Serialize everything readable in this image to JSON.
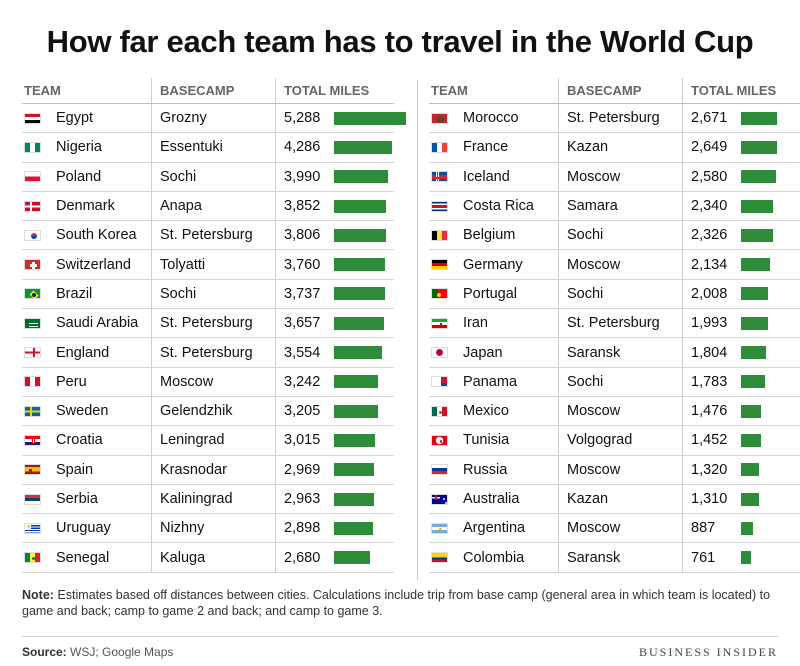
{
  "title": "How far each team has to travel in the World Cup",
  "headers": {
    "team": "TEAM",
    "basecamp": "BASECAMP",
    "miles": "TOTAL MILES"
  },
  "note_label": "Note:",
  "note_text": "Estimates based off distances between cities. Calculations include trip from base camp (general area in which team is located) to game and back; camp to game 2 and back; and camp to game 3.",
  "source_label": "Source:",
  "source_text": "WSJ; Google Maps",
  "brand": "BUSINESS INSIDER",
  "colors": {
    "bar": "#2e8b3a"
  },
  "chart_data": {
    "type": "table",
    "title": "How far each team has to travel in the World Cup",
    "columns": [
      "TEAM",
      "BASECAMP",
      "TOTAL MILES"
    ],
    "bar_max": 5288,
    "rows": [
      {
        "team": "Egypt",
        "basecamp": "Grozny",
        "miles": 5288,
        "miles_label": "5,288",
        "flag": "egypt"
      },
      {
        "team": "Nigeria",
        "basecamp": "Essentuki",
        "miles": 4286,
        "miles_label": "4,286",
        "flag": "nigeria"
      },
      {
        "team": "Poland",
        "basecamp": "Sochi",
        "miles": 3990,
        "miles_label": "3,990",
        "flag": "poland"
      },
      {
        "team": "Denmark",
        "basecamp": "Anapa",
        "miles": 3852,
        "miles_label": "3,852",
        "flag": "denmark"
      },
      {
        "team": "South Korea",
        "basecamp": "St. Petersburg",
        "miles": 3806,
        "miles_label": "3,806",
        "flag": "southkorea"
      },
      {
        "team": "Switzerland",
        "basecamp": "Tolyatti",
        "miles": 3760,
        "miles_label": "3,760",
        "flag": "switzerland"
      },
      {
        "team": "Brazil",
        "basecamp": "Sochi",
        "miles": 3737,
        "miles_label": "3,737",
        "flag": "brazil"
      },
      {
        "team": "Saudi Arabia",
        "basecamp": "St. Petersburg",
        "miles": 3657,
        "miles_label": "3,657",
        "flag": "saudiarabia"
      },
      {
        "team": "England",
        "basecamp": "St. Petersburg",
        "miles": 3554,
        "miles_label": "3,554",
        "flag": "england"
      },
      {
        "team": "Peru",
        "basecamp": "Moscow",
        "miles": 3242,
        "miles_label": "3,242",
        "flag": "peru"
      },
      {
        "team": "Sweden",
        "basecamp": "Gelendzhik",
        "miles": 3205,
        "miles_label": "3,205",
        "flag": "sweden"
      },
      {
        "team": "Croatia",
        "basecamp": "Leningrad",
        "miles": 3015,
        "miles_label": "3,015",
        "flag": "croatia"
      },
      {
        "team": "Spain",
        "basecamp": "Krasnodar",
        "miles": 2969,
        "miles_label": "2,969",
        "flag": "spain"
      },
      {
        "team": "Serbia",
        "basecamp": "Kaliningrad",
        "miles": 2963,
        "miles_label": "2,963",
        "flag": "serbia"
      },
      {
        "team": "Uruguay",
        "basecamp": "Nizhny",
        "miles": 2898,
        "miles_label": "2,898",
        "flag": "uruguay"
      },
      {
        "team": "Senegal",
        "basecamp": "Kaluga",
        "miles": 2680,
        "miles_label": "2,680",
        "flag": "senegal"
      },
      {
        "team": "Morocco",
        "basecamp": "St. Petersburg",
        "miles": 2671,
        "miles_label": "2,671",
        "flag": "morocco"
      },
      {
        "team": "France",
        "basecamp": "Kazan",
        "miles": 2649,
        "miles_label": "2,649",
        "flag": "france"
      },
      {
        "team": "Iceland",
        "basecamp": "Moscow",
        "miles": 2580,
        "miles_label": "2,580",
        "flag": "iceland"
      },
      {
        "team": "Costa Rica",
        "basecamp": "Samara",
        "miles": 2340,
        "miles_label": "2,340",
        "flag": "costarica"
      },
      {
        "team": "Belgium",
        "basecamp": "Sochi",
        "miles": 2326,
        "miles_label": "2,326",
        "flag": "belgium"
      },
      {
        "team": "Germany",
        "basecamp": "Moscow",
        "miles": 2134,
        "miles_label": "2,134",
        "flag": "germany"
      },
      {
        "team": "Portugal",
        "basecamp": "Sochi",
        "miles": 2008,
        "miles_label": "2,008",
        "flag": "portugal"
      },
      {
        "team": "Iran",
        "basecamp": "St. Petersburg",
        "miles": 1993,
        "miles_label": "1,993",
        "flag": "iran"
      },
      {
        "team": "Japan",
        "basecamp": "Saransk",
        "miles": 1804,
        "miles_label": "1,804",
        "flag": "japan"
      },
      {
        "team": "Panama",
        "basecamp": "Sochi",
        "miles": 1783,
        "miles_label": "1,783",
        "flag": "panama"
      },
      {
        "team": "Mexico",
        "basecamp": "Moscow",
        "miles": 1476,
        "miles_label": "1,476",
        "flag": "mexico"
      },
      {
        "team": "Tunisia",
        "basecamp": "Volgograd",
        "miles": 1452,
        "miles_label": "1,452",
        "flag": "tunisia"
      },
      {
        "team": "Russia",
        "basecamp": "Moscow",
        "miles": 1320,
        "miles_label": "1,320",
        "flag": "russia"
      },
      {
        "team": "Australia",
        "basecamp": "Kazan",
        "miles": 1310,
        "miles_label": "1,310",
        "flag": "australia"
      },
      {
        "team": "Argentina",
        "basecamp": "Moscow",
        "miles": 887,
        "miles_label": "887",
        "flag": "argentina"
      },
      {
        "team": "Colombia",
        "basecamp": "Saransk",
        "miles": 761,
        "miles_label": "761",
        "flag": "colombia"
      }
    ]
  }
}
